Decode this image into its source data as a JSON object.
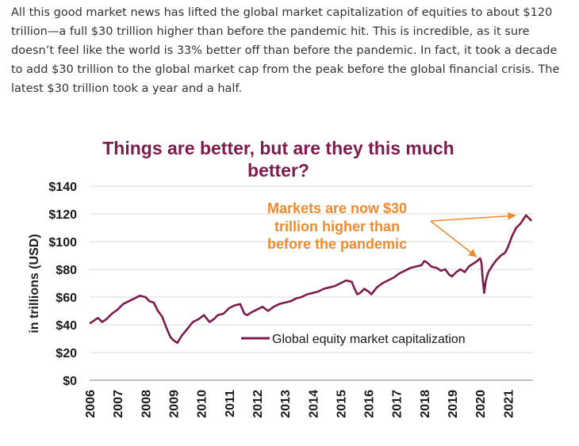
{
  "article": {
    "paragraph": "All this good market news has lifted the global market capitalization of equities to about $120 trillion—a full $30 trillion higher than before the pandemic hit. This is incredible, as it sure doesn’t feel like the world is 33% better off than before the pandemic. In fact, it took a decade to add $30 trillion to the global market cap from the peak before the global financial crisis. The latest $30 trillion took a year and a half."
  },
  "colors": {
    "series": "#7e1b4e",
    "annotation": "#ef8a2b",
    "grid": "#d9d9d9",
    "axis": "#bfbfbf"
  },
  "chart_data": {
    "type": "line",
    "title_line1": "Things are better, but are they this much",
    "title_line2": "better?",
    "ylabel": "in trillions (USD)",
    "ylim": [
      0,
      140
    ],
    "xlim": [
      2006,
      2021.9
    ],
    "y_ticks": [
      0,
      20,
      40,
      60,
      80,
      100,
      120,
      140
    ],
    "y_tick_labels": [
      "$0",
      "$20",
      "$40",
      "$60",
      "$80",
      "$100",
      "$120",
      "$140"
    ],
    "x_tick_labels": [
      "2006",
      "2007",
      "2008",
      "2009",
      "2010",
      "2011",
      "2012",
      "2013",
      "2014",
      "2015",
      "2016",
      "2017",
      "2018",
      "2019",
      "2020",
      "2021"
    ],
    "grid": true,
    "legend_position": "center-right",
    "annotation": {
      "lines": [
        "Markets are now $30",
        "trillion higher than",
        "before the pandemic"
      ],
      "arrow_targets": [
        [
          2020.0,
          90
        ],
        [
          2021.4,
          120
        ]
      ]
    },
    "series": [
      {
        "name": "Global equity market capitalization",
        "x": [
          2006.0,
          2006.15,
          2006.3,
          2006.45,
          2006.6,
          2006.8,
          2007.0,
          2007.2,
          2007.4,
          2007.6,
          2007.8,
          2008.0,
          2008.15,
          2008.3,
          2008.45,
          2008.6,
          2008.75,
          2008.9,
          2009.0,
          2009.15,
          2009.3,
          2009.5,
          2009.7,
          2009.9,
          2010.1,
          2010.3,
          2010.45,
          2010.6,
          2010.8,
          2011.0,
          2011.2,
          2011.4,
          2011.55,
          2011.65,
          2011.8,
          2012.0,
          2012.2,
          2012.4,
          2012.6,
          2012.8,
          2013.0,
          2013.2,
          2013.4,
          2013.6,
          2013.8,
          2014.0,
          2014.2,
          2014.4,
          2014.6,
          2014.8,
          2015.0,
          2015.2,
          2015.4,
          2015.5,
          2015.6,
          2015.7,
          2015.85,
          2016.0,
          2016.1,
          2016.3,
          2016.5,
          2016.7,
          2016.9,
          2017.1,
          2017.3,
          2017.5,
          2017.7,
          2017.9,
          2018.0,
          2018.1,
          2018.25,
          2018.45,
          2018.6,
          2018.75,
          2018.9,
          2019.0,
          2019.15,
          2019.3,
          2019.45,
          2019.6,
          2019.75,
          2019.9,
          2020.0,
          2020.05,
          2020.1,
          2020.15,
          2020.2,
          2020.25,
          2020.3,
          2020.45,
          2020.6,
          2020.75,
          2020.9,
          2021.0,
          2021.15,
          2021.3,
          2021.45,
          2021.55,
          2021.65,
          2021.75,
          2021.85
        ],
        "values": [
          41,
          43,
          45,
          42,
          44,
          48,
          51,
          55,
          57,
          59,
          61,
          60,
          57,
          56,
          50,
          46,
          38,
          31,
          29,
          27,
          32,
          37,
          42,
          44,
          47,
          42,
          44,
          47,
          48,
          52,
          54,
          55,
          48,
          47,
          49,
          51,
          53,
          50,
          53,
          55,
          56,
          57,
          59,
          60,
          62,
          63,
          64,
          66,
          67,
          68,
          70,
          72,
          71,
          66,
          62,
          63,
          66,
          64,
          62,
          67,
          70,
          72,
          74,
          77,
          79,
          81,
          82,
          83,
          86,
          85,
          82,
          81,
          79,
          80,
          76,
          75,
          78,
          80,
          78,
          82,
          84,
          86,
          88,
          85,
          72,
          63,
          71,
          75,
          78,
          83,
          87,
          90,
          92,
          96,
          104,
          110,
          113,
          116,
          119,
          117,
          115
        ]
      }
    ]
  }
}
